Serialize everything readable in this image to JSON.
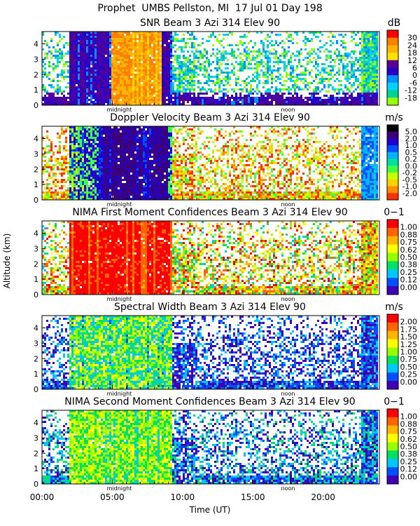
{
  "header": {
    "title_line": "Prophet  UMBS Pellston, MI  17 Jul 01 Day 198"
  },
  "x_axis": {
    "label": "Time (UT)",
    "ticks": [
      "00:00",
      "05:00",
      "10:00",
      "15:00",
      "20:00"
    ],
    "tick_hours": [
      0,
      5,
      10,
      15,
      20
    ],
    "range_hours": [
      0,
      24
    ],
    "markers": [
      {
        "label": "midnight",
        "hour": 5.5
      },
      {
        "label": "noon",
        "hour": 17.5
      }
    ]
  },
  "y_axis": {
    "label": "Altitude (km)",
    "range_km": [
      0,
      4.8
    ],
    "ticks": [
      "0",
      "1",
      "2",
      "3",
      "4"
    ]
  },
  "panels": [
    {
      "title": "SNR Beam 3 Azi 314 Elev 90",
      "unit": "dB",
      "colorbar_labels": [
        "30",
        "24",
        "18",
        "12",
        "6",
        "0",
        "-6",
        "-12",
        "-18"
      ],
      "colors": [
        "#ff0000",
        "#ff7f00",
        "#ffb300",
        "#ffe100",
        "#5a0090",
        "#2a00c8",
        "#0090ff",
        "#00d2ff",
        "#00d296",
        "#96ff00"
      ]
    },
    {
      "title": "Doppler Velocity Beam 3 Azi 314 Elev 90",
      "unit": "m/s",
      "colorbar_labels": [
        "5.0",
        "2.0",
        "1.0",
        "0.5",
        "0.2",
        "0.0",
        "-0.2",
        "-0.5",
        "-1.0",
        "-2.0"
      ],
      "colors": [
        "#000000",
        "#3c0078",
        "#2000d0",
        "#0050ff",
        "#00b4ff",
        "#00e1a0",
        "#40ff40",
        "#c8ff00",
        "#ffd200",
        "#ff8c00",
        "#ff3200"
      ]
    },
    {
      "title": "NIMA First Moment Confidences Beam 3 Azi 314 Elev 90",
      "unit": "0−1",
      "colorbar_labels": [
        "1.00",
        "0.88",
        "0.75",
        "0.62",
        "0.50",
        "0.38",
        "0.25",
        "0.12",
        "0.00"
      ],
      "colors": [
        "#ff0000",
        "#ff6400",
        "#ffb400",
        "#ffff00",
        "#96ff00",
        "#00e164",
        "#00c8ff",
        "#0050ff",
        "#4000b4"
      ]
    },
    {
      "title": "Spectral Width Beam 3 Azi 314 Elev 90",
      "unit": "m/s",
      "colorbar_labels": [
        "2.00",
        "1.75",
        "1.50",
        "1.25",
        "1.00",
        "0.75",
        "0.50",
        "0.25",
        "0.00"
      ],
      "colors": [
        "#ff0000",
        "#ff6400",
        "#ffb400",
        "#ffff00",
        "#96ff00",
        "#00e164",
        "#00c8ff",
        "#0050ff",
        "#4000b4"
      ]
    },
    {
      "title": "NIMA Second Moment Confidences Beam 3 Azi 314 Elev 90",
      "unit": "0−1",
      "colorbar_labels": [
        "1.00",
        "0.88",
        "0.75",
        "0.62",
        "0.50",
        "0.38",
        "0.25",
        "0.12",
        "0.00"
      ],
      "colors": [
        "#ff0000",
        "#ff6400",
        "#ffb400",
        "#ffff00",
        "#96ff00",
        "#00e164",
        "#00c8ff",
        "#0050ff",
        "#4000b4"
      ]
    }
  ],
  "chart_data": {
    "type": "heatmap",
    "title": "Prophet  UMBS Pellston, MI  17 Jul 01 Day 198",
    "xlabel": "Time (UT)",
    "ylabel": "Altitude (km)",
    "xlim_hours": [
      0,
      24
    ],
    "ylim_km": [
      0,
      4.8
    ],
    "x_ticks": [
      "00:00",
      "05:00",
      "10:00",
      "15:00",
      "20:00"
    ],
    "y_ticks": [
      0,
      1,
      2,
      3,
      4
    ],
    "panels": [
      {
        "title": "SNR Beam 3 Azi 314 Elev 90",
        "unit": "dB",
        "color_scale": [
          30,
          24,
          18,
          12,
          6,
          0,
          -6,
          -12,
          -18
        ]
      },
      {
        "title": "Doppler Velocity Beam 3 Azi 314 Elev 90",
        "unit": "m/s",
        "color_scale": [
          5.0,
          2.0,
          1.0,
          0.5,
          0.2,
          0.0,
          -0.2,
          -0.5,
          -1.0,
          -2.0
        ]
      },
      {
        "title": "NIMA First Moment Confidences Beam 3 Azi 314 Elev 90",
        "unit": "0−1",
        "color_scale": [
          1.0,
          0.88,
          0.75,
          0.62,
          0.5,
          0.38,
          0.25,
          0.12,
          0.0
        ]
      },
      {
        "title": "Spectral Width Beam 3 Azi 314 Elev 90",
        "unit": "m/s",
        "color_scale": [
          2.0,
          1.75,
          1.5,
          1.25,
          1.0,
          0.75,
          0.5,
          0.25,
          0.0
        ]
      },
      {
        "title": "NIMA Second Moment Confidences Beam 3 Azi 314 Elev 90",
        "unit": "0−1",
        "color_scale": [
          1.0,
          0.88,
          0.75,
          0.62,
          0.5,
          0.38,
          0.25,
          0.12,
          0.0
        ]
      }
    ],
    "grid": false
  }
}
